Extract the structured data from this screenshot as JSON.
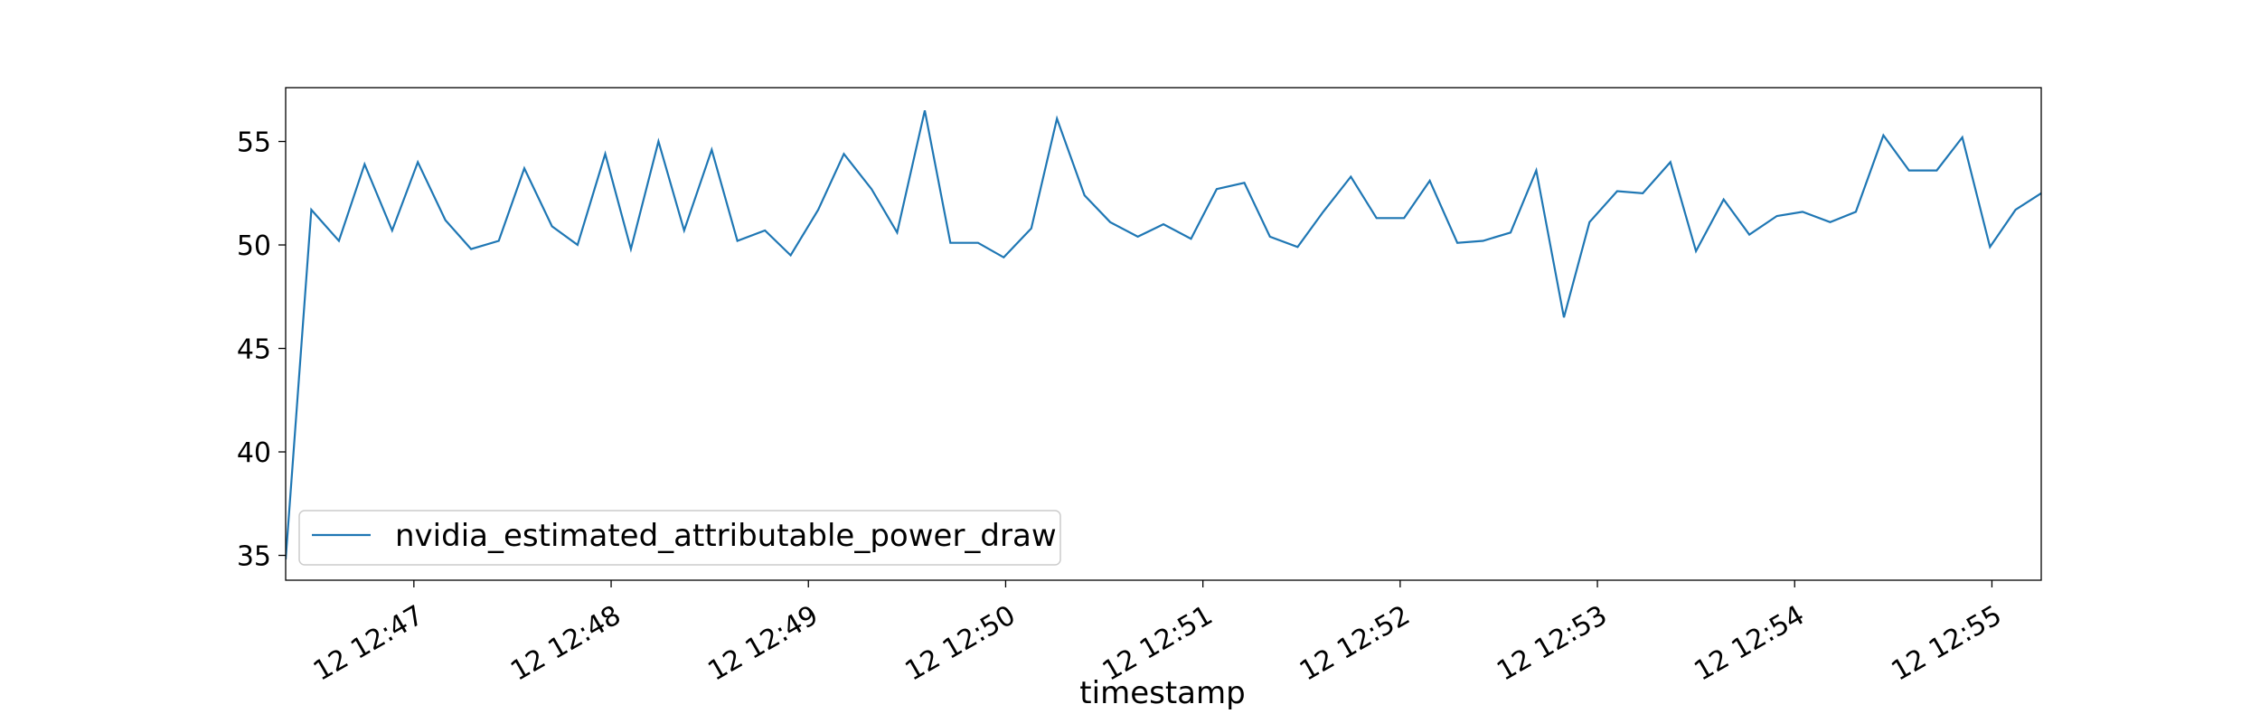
{
  "chart_data": {
    "type": "line",
    "title": "",
    "xlabel": "timestamp",
    "ylabel": "",
    "xlim_minutes": [
      46.35,
      55.25
    ],
    "ylim": [
      33.8,
      57.6
    ],
    "x_tick_minutes": [
      47,
      48,
      49,
      50,
      51,
      52,
      53,
      54,
      55
    ],
    "x_tick_labels": [
      "12 12:47",
      "12 12:48",
      "12 12:49",
      "12 12:50",
      "12 12:51",
      "12 12:52",
      "12 12:53",
      "12 12:54",
      "12 12:55"
    ],
    "y_ticks": [
      35,
      40,
      45,
      50,
      55
    ],
    "y_tick_labels": [
      "35",
      "40",
      "45",
      "50",
      "55"
    ],
    "legend_position": "lower-left",
    "series": [
      {
        "name": "nvidia_estimated_attributable_power_draw",
        "color": "#1f77b4",
        "x_minutes": [
          46.35,
          46.48,
          46.62,
          46.75,
          46.89,
          47.02,
          47.16,
          47.29,
          47.43,
          47.56,
          47.7,
          47.83,
          47.97,
          48.1,
          48.24,
          48.37,
          48.51,
          48.64,
          48.78,
          48.91,
          49.05,
          49.18,
          49.32,
          49.45,
          49.59,
          49.72,
          49.86,
          49.99,
          50.13,
          50.26,
          50.4,
          50.53,
          50.67,
          50.8,
          50.94,
          51.07,
          51.21,
          51.34,
          51.48,
          51.61,
          51.75,
          51.88,
          52.02,
          52.15,
          52.29,
          52.42,
          52.56,
          52.69,
          52.83,
          52.96,
          53.1,
          53.23,
          53.37,
          53.5,
          53.64,
          53.77,
          53.91,
          54.04,
          54.18,
          54.31,
          54.45,
          54.58,
          54.72,
          54.85,
          54.99,
          55.12,
          55.25
        ],
        "values": [
          34.8,
          51.7,
          50.2,
          53.9,
          50.7,
          54.0,
          51.2,
          49.8,
          50.2,
          53.7,
          50.9,
          50.0,
          54.4,
          49.8,
          55.0,
          50.7,
          54.6,
          50.2,
          50.7,
          49.5,
          51.7,
          54.4,
          52.7,
          50.6,
          56.5,
          50.1,
          50.1,
          49.4,
          50.8,
          56.1,
          52.4,
          51.1,
          50.4,
          51.0,
          50.3,
          52.7,
          53.0,
          50.4,
          49.9,
          51.6,
          53.3,
          51.3,
          51.3,
          53.1,
          50.1,
          50.2,
          50.6,
          53.6,
          46.5,
          51.1,
          52.6,
          52.5,
          54.0,
          49.7,
          52.2,
          50.5,
          51.4,
          51.6,
          51.1,
          51.6,
          55.3,
          53.6,
          53.6,
          55.2,
          49.9,
          51.7,
          52.5
        ]
      }
    ]
  }
}
